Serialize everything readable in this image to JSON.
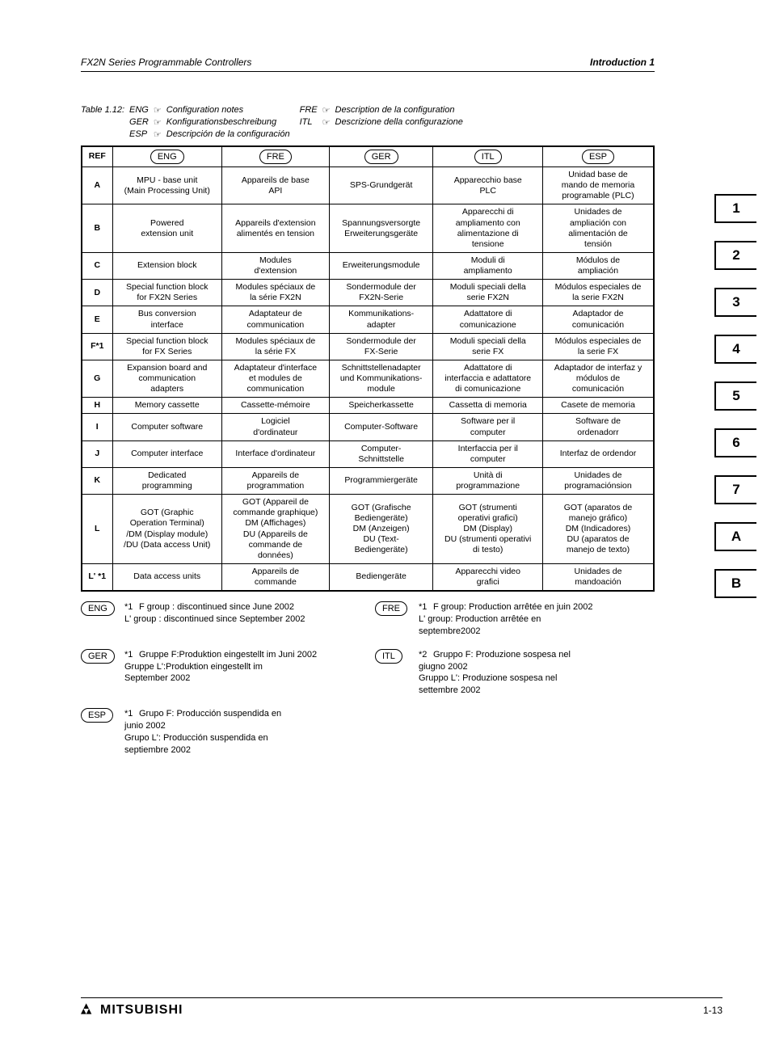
{
  "header": {
    "left": "FX2N Series Programmable Controllers",
    "right": "Introduction 1"
  },
  "caption": {
    "table_label": "Table 1.12:",
    "rows": [
      {
        "code": "ENG",
        "text": "Configuration notes",
        "code2": "FRE",
        "text2": "Description de la configuration"
      },
      {
        "code": "GER",
        "text": "Konfigurationsbeschreibung",
        "code2": "ITL",
        "text2": "Descrizione della configurazione"
      },
      {
        "code": "ESP",
        "text": "Descripción de la configuración",
        "code2": "",
        "text2": ""
      }
    ],
    "pointer_glyph": "☞"
  },
  "table": {
    "header": {
      "ref": "REF",
      "cols": [
        "ENG",
        "FRE",
        "GER",
        "ITL",
        "ESP"
      ]
    },
    "rows": [
      {
        "ref": "A",
        "cells": [
          "MPU - base unit\n(Main Processing Unit)",
          "Appareils de base\nAPI",
          "SPS-Grundgerät",
          "Apparecchio base\nPLC",
          "Unidad base de\nmando de memoria\nprogramable (PLC)"
        ]
      },
      {
        "ref": "B",
        "cells": [
          "Powered\nextension unit",
          "Appareils d'extension\nalimentés en tension",
          "Spannungsversorgte\nErweiterungsgeräte",
          "Apparecchi di\nampliamento con\nalimentazione di\ntensione",
          "Unidades de\nampliación con\nalimentación de\ntensión"
        ]
      },
      {
        "ref": "C",
        "cells": [
          "Extension block",
          "Modules\nd'extension",
          "Erweiterungsmodule",
          "Moduli di\nampliamento",
          "Módulos de\nampliación"
        ]
      },
      {
        "ref": "D",
        "cells": [
          "Special function block\nfor FX2N Series",
          "Modules spéciaux de\nla série FX2N",
          "Sondermodule der\nFX2N-Serie",
          "Moduli speciali della\nserie FX2N",
          "Módulos especiales de\nla serie FX2N"
        ]
      },
      {
        "ref": "E",
        "cells": [
          "Bus conversion\ninterface",
          "Adaptateur de\ncommunication",
          "Kommunikations-\nadapter",
          "Adattatore di\ncomunicazione",
          "Adaptador de\ncomunicación"
        ]
      },
      {
        "ref": "F*1",
        "cells": [
          "Special function block\nfor FX Series",
          "Modules spéciaux de\nla série FX",
          "Sondermodule der\nFX-Serie",
          "Moduli speciali della\nserie FX",
          "Módulos especiales de\nla serie FX"
        ]
      },
      {
        "ref": "G",
        "cells": [
          "Expansion board and\ncommunication\nadapters",
          "Adaptateur d'interface\net modules de\ncommunication",
          "Schnittstellenadapter\nund Kommunikations-\nmodule",
          "Adattatore di\ninterfaccia e adattatore\ndi comunicazione",
          "Adaptador de interfaz y\nmódulos de\ncomunicación"
        ]
      },
      {
        "ref": "H",
        "cells": [
          "Memory cassette",
          "Cassette-mémoire",
          "Speicherkassette",
          "Cassetta di memoria",
          "Casete de memoria"
        ]
      },
      {
        "ref": "I",
        "cells": [
          "Computer software",
          "Logiciel\nd'ordinateur",
          "Computer-Software",
          "Software per il\ncomputer",
          "Software de\nordenadorr"
        ]
      },
      {
        "ref": "J",
        "cells": [
          "Computer interface",
          "Interface d'ordinateur",
          "Computer-\nSchnittstelle",
          "Interfaccia per il\ncomputer",
          "Interfaz de ordendor"
        ]
      },
      {
        "ref": "K",
        "cells": [
          "Dedicated\nprogramming",
          "Appareils de\nprogrammation",
          "Programmiergeräte",
          "Unità di\nprogrammazione",
          "Unidades de\nprogramaciónsion"
        ]
      },
      {
        "ref": "L",
        "cells": [
          "GOT (Graphic\nOperation Terminal)\n/DM (Display module)\n/DU (Data access Unit)",
          "GOT (Appareil de\ncommande graphique)\nDM (Affichages)\nDU (Appareils de\ncommande de\ndonnées)",
          "GOT (Grafische\nBediengeräte)\nDM (Anzeigen)\nDU (Text-\nBediengeräte)",
          "GOT (strumenti\noperativi grafici)\nDM (Display)\nDU (strumenti operativi\ndi testo)",
          "GOT (aparatos de\nmanejo gráfico)\nDM (Indicadores)\nDU (aparatos de\nmanejo de texto)"
        ]
      },
      {
        "ref": "L' *1",
        "cells": [
          "Data access units",
          "Appareils de\ncommande",
          "Bediengeräte",
          "Apparecchi video\ngrafici",
          "Unidades de\nmandoación"
        ]
      }
    ]
  },
  "footnotes": [
    {
      "lang": "ENG",
      "marker": "*1",
      "text": "F group  : discontinued since June 2002\nL' group  : discontinued since September 2002",
      "lang2": "FRE",
      "marker2": "*1",
      "text2": "F group: Production arrêtée en juin 2002\nL' group: Production arrêtée en\n              septembre2002"
    },
    {
      "lang": "GER",
      "marker": "*1",
      "text": "Gruppe F:Produktion eingestellt im Juni 2002\nGruppe L':Produktion eingestellt im\n              September 2002",
      "lang2": "ITL",
      "marker2": "*2",
      "text2": "Gruppo F: Produzione sospesa nel\n              giugno  2002\nGruppo L': Produzione sospesa nel\n              settembre 2002"
    },
    {
      "lang": "ESP",
      "marker": "*1",
      "text": "Grupo F: Producción suspendida en\n              junio 2002\nGrupo L': Producción suspendida en\n              septiembre 2002",
      "lang2": "",
      "marker2": "",
      "text2": ""
    }
  ],
  "footer": {
    "brand_logo": "◆◆◆",
    "brand": "MITSUBISHI",
    "page": "1-13"
  },
  "tabs": [
    "1",
    "2",
    "3",
    "4",
    "5",
    "6",
    "7",
    "A",
    "B"
  ]
}
